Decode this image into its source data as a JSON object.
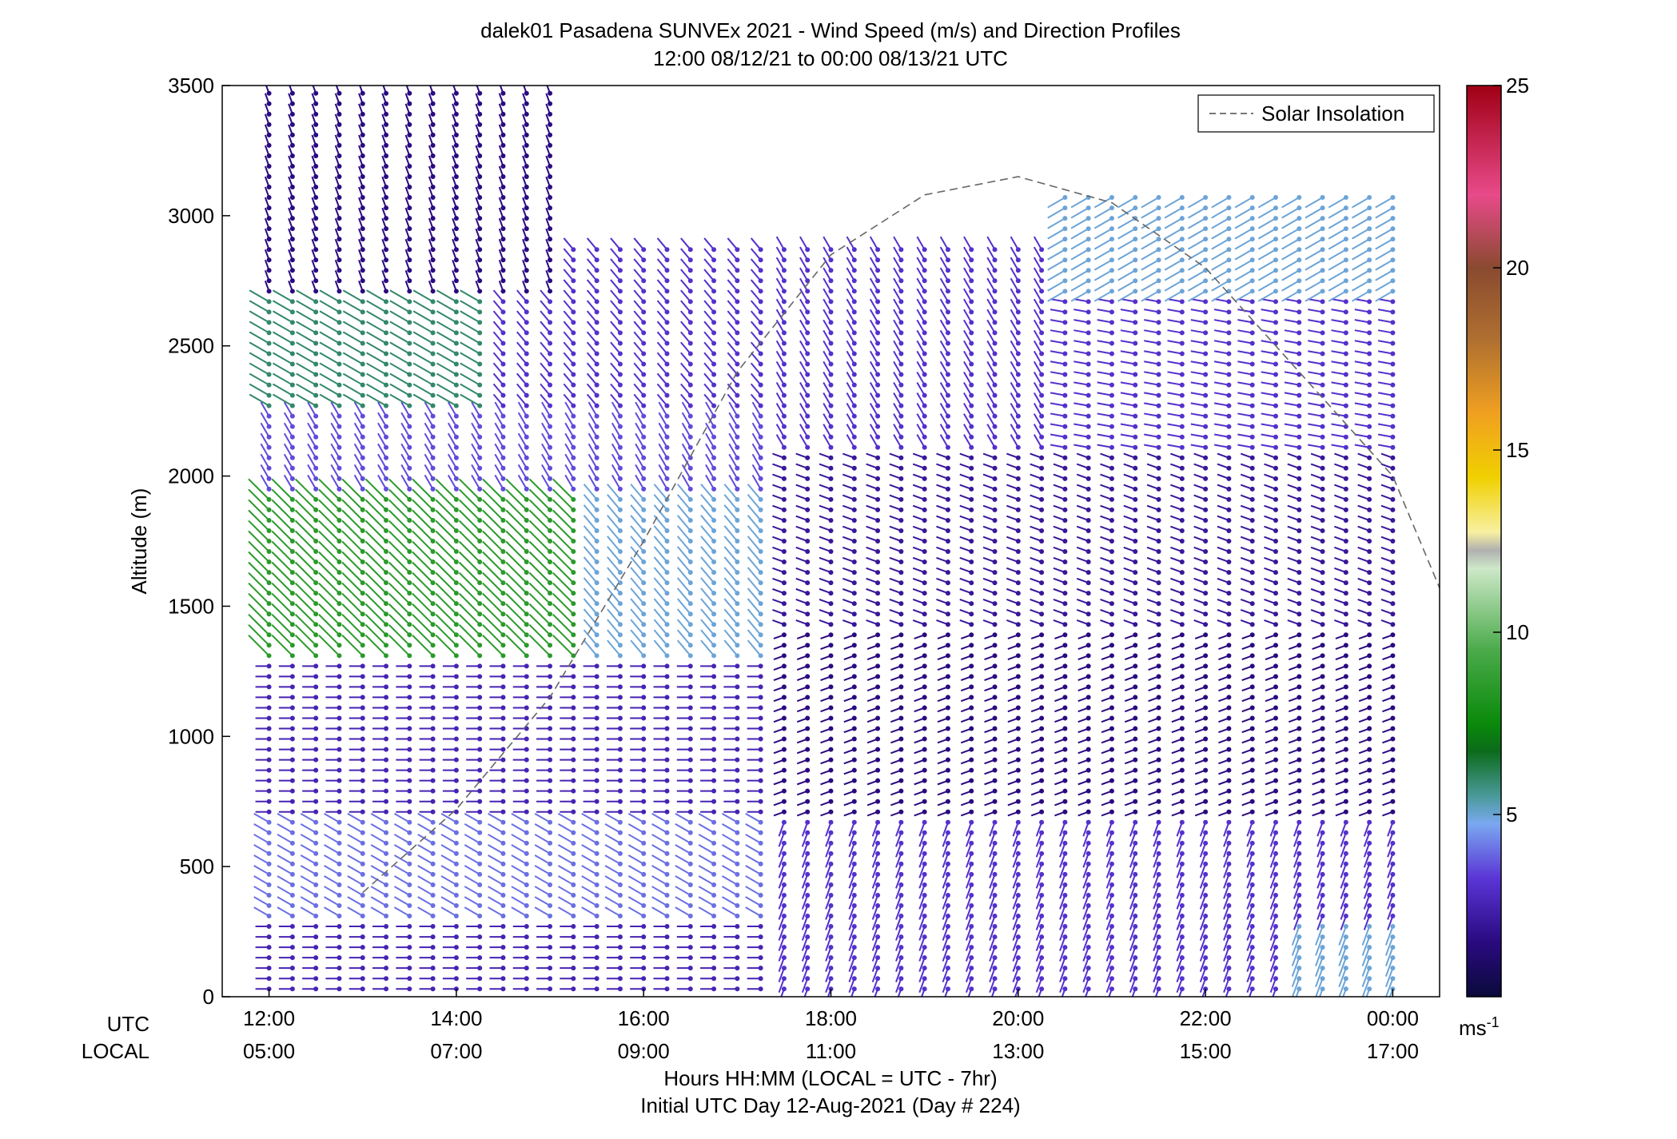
{
  "chart_data": {
    "type": "scatter",
    "title": "dalek01 Pasadena SUNVEx 2021 - Wind Speed (m/s) and Direction Profiles",
    "subtitle": "12:00 08/12/21 to 00:00 08/13/21  UTC",
    "ylabel": "Altitude (m)",
    "xlabel": "Hours HH:MM  (LOCAL = UTC - 7hr)",
    "xlabel2": "Initial UTC Day 12-Aug-2021 (Day # 224)",
    "row_label_utc": "UTC",
    "row_label_local": "LOCAL",
    "xlim": [
      11.5,
      24.5
    ],
    "ylim": [
      0,
      3500
    ],
    "yticks": [
      "0",
      "500",
      "1000",
      "1500",
      "2000",
      "2500",
      "3000",
      "3500"
    ],
    "xticks_utc": [
      "12:00",
      "14:00",
      "16:00",
      "18:00",
      "20:00",
      "22:00",
      "00:00"
    ],
    "xticks_local": [
      "05:00",
      "07:00",
      "09:00",
      "11:00",
      "13:00",
      "15:00",
      "17:00"
    ],
    "legend": {
      "label": "Solar Insolation",
      "placement": "top-right"
    },
    "colorbar": {
      "min": 0,
      "max": 25,
      "ticks": [
        "5",
        "10",
        "15",
        "20",
        "25"
      ],
      "unit_label": "ms",
      "unit_exponent": "-1"
    },
    "solar_insolation": {
      "x": [
        13.0,
        14.0,
        15.0,
        16.0,
        17.0,
        18.0,
        19.0,
        20.0,
        21.0,
        22.0,
        23.0,
        24.0,
        24.5
      ],
      "y": [
        400,
        720,
        1150,
        1750,
        2400,
        2850,
        3080,
        3150,
        3050,
        2800,
        2400,
        2000,
        1570
      ]
    },
    "profile_times_utc": [
      12.0,
      12.25,
      12.5,
      12.75,
      13.0,
      13.25,
      13.5,
      13.75,
      14.0,
      14.25,
      14.5,
      14.75,
      15.0,
      15.25,
      15.5,
      15.75,
      16.0,
      16.25,
      16.5,
      16.75,
      17.0,
      17.25,
      17.5,
      17.75,
      18.0,
      18.25,
      18.5,
      18.75,
      19.0,
      19.25,
      19.5,
      19.75,
      20.0,
      20.25,
      20.5,
      20.75,
      21.0,
      21.25,
      21.5,
      21.75,
      22.0,
      22.25,
      22.5,
      22.75,
      23.0,
      23.25,
      23.5,
      23.75,
      24.0
    ],
    "wind_regimes": [
      {
        "t_start": 12.0,
        "t_end": 17.4,
        "alt_min": 0,
        "alt_max": 300,
        "speed_ms": 2.5,
        "dir_deg": 270
      },
      {
        "t_start": 12.0,
        "t_end": 17.4,
        "alt_min": 300,
        "alt_max": 700,
        "speed_ms": 4.0,
        "dir_deg": 300
      },
      {
        "t_start": 12.0,
        "t_end": 17.4,
        "alt_min": 700,
        "alt_max": 1300,
        "speed_ms": 2.5,
        "dir_deg": 270
      },
      {
        "t_start": 12.0,
        "t_end": 15.5,
        "alt_min": 1300,
        "alt_max": 1950,
        "speed_ms": 8.5,
        "dir_deg": 315
      },
      {
        "t_start": 15.5,
        "t_end": 17.4,
        "alt_min": 1300,
        "alt_max": 1950,
        "speed_ms": 5.0,
        "dir_deg": 320
      },
      {
        "t_start": 12.0,
        "t_end": 17.4,
        "alt_min": 1950,
        "alt_max": 2250,
        "speed_ms": 3.5,
        "dir_deg": 330
      },
      {
        "t_start": 12.0,
        "t_end": 14.5,
        "alt_min": 2250,
        "alt_max": 2700,
        "speed_ms": 6.0,
        "dir_deg": 300
      },
      {
        "t_start": 14.5,
        "t_end": 17.4,
        "alt_min": 2250,
        "alt_max": 2900,
        "speed_ms": 3.0,
        "dir_deg": 320
      },
      {
        "t_start": 12.0,
        "t_end": 15.0,
        "alt_min": 2700,
        "alt_max": 3500,
        "speed_ms": 1.5,
        "dir_deg": 340
      },
      {
        "t_start": 17.4,
        "t_end": 24.0,
        "alt_min": 0,
        "alt_max": 700,
        "speed_ms": 3.0,
        "dir_deg": 200
      },
      {
        "t_start": 17.4,
        "t_end": 24.0,
        "alt_min": 700,
        "alt_max": 1400,
        "speed_ms": 1.5,
        "dir_deg": 250
      },
      {
        "t_start": 17.4,
        "t_end": 24.0,
        "alt_min": 1400,
        "alt_max": 2100,
        "speed_ms": 2.0,
        "dir_deg": 290
      },
      {
        "t_start": 17.4,
        "t_end": 20.5,
        "alt_min": 2100,
        "alt_max": 2900,
        "speed_ms": 3.0,
        "dir_deg": 330
      },
      {
        "t_start": 20.5,
        "t_end": 24.0,
        "alt_min": 2100,
        "alt_max": 2700,
        "speed_ms": 3.0,
        "dir_deg": 280
      },
      {
        "t_start": 20.5,
        "t_end": 24.0,
        "alt_min": 2700,
        "alt_max": 3100,
        "speed_ms": 5.0,
        "dir_deg": 240
      },
      {
        "t_start": 23.0,
        "t_end": 24.0,
        "alt_min": 0,
        "alt_max": 300,
        "speed_ms": 5.0,
        "dir_deg": 200
      }
    ],
    "grid": false
  }
}
